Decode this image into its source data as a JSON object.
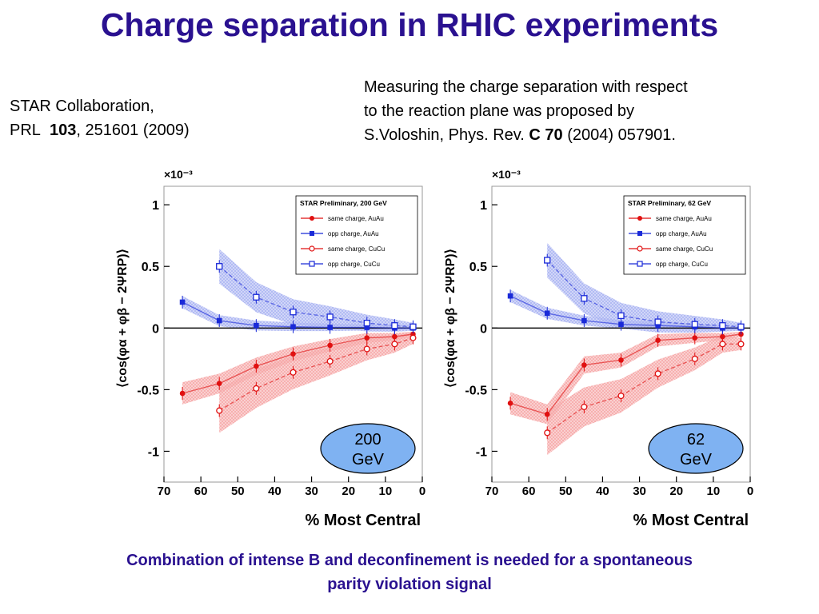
{
  "title": "Charge separation in RHIC experiments",
  "reference_left": {
    "line1": "STAR Collaboration,",
    "journal": "PRL",
    "volume": "103",
    "pages": ", 251601 (2009)"
  },
  "reference_right": {
    "line1": "Measuring the charge separation with respect",
    "line2": "to the reaction plane was proposed by",
    "line3_prefix": "S.Voloshin, Phys. Rev.",
    "line3_bold": "C 70",
    "line3_suffix": "(2004) 057901."
  },
  "caption": {
    "line1": "Combination of intense B and deconfinement is needed for a spontaneous",
    "line2": "parity violation signal"
  },
  "colors": {
    "title": "#2a1190",
    "same_charge": "#e01010",
    "opp_charge": "#1a2ad8",
    "same_band": "#f6a8a8",
    "opp_band": "#aab4f2",
    "badge": "#7fb2f2"
  },
  "chart_data": [
    {
      "type": "scatter",
      "xlabel": "% Most Central",
      "ylabel": "⟨cos(φα + φβ − 2ΨRP)⟩",
      "multiplier": "×10⁻³",
      "xlim": [
        70,
        0
      ],
      "ylim": [
        -1.25,
        1.15
      ],
      "yticks": [
        1,
        0.5,
        0,
        -0.5,
        -1
      ],
      "ytick_labels": [
        "1",
        "0.5",
        "0",
        "-0.5",
        "-1"
      ],
      "xticks": [
        70,
        60,
        50,
        40,
        30,
        20,
        10,
        0
      ],
      "legend_title": "STAR Preliminary,  200 GeV",
      "badge_line1": "200",
      "badge_line2": "GeV",
      "series": [
        {
          "name": "same charge, AuAu",
          "style": "filled-circle",
          "color": "#e01010",
          "x": [
            65,
            55,
            45,
            35,
            25,
            15,
            7.5,
            2.5
          ],
          "y": [
            -0.53,
            -0.45,
            -0.31,
            -0.21,
            -0.14,
            -0.08,
            -0.07,
            -0.05
          ]
        },
        {
          "name": "opp charge, AuAu",
          "style": "filled-square",
          "color": "#1a2ad8",
          "x": [
            65,
            55,
            45,
            35,
            25,
            15,
            7.5,
            2.5
          ],
          "y": [
            0.21,
            0.06,
            0.02,
            0.01,
            0.005,
            0.005,
            0.0,
            0.0
          ]
        },
        {
          "name": "same charge, CuCu",
          "style": "open-circle",
          "color": "#e01010",
          "x": [
            55,
            45,
            35,
            25,
            15,
            7.5,
            2.5
          ],
          "y": [
            -0.67,
            -0.49,
            -0.36,
            -0.27,
            -0.17,
            -0.13,
            -0.08
          ]
        },
        {
          "name": "opp charge, CuCu",
          "style": "open-square",
          "color": "#1a2ad8",
          "x": [
            55,
            45,
            35,
            25,
            15,
            7.5,
            2.5
          ],
          "y": [
            0.5,
            0.25,
            0.13,
            0.09,
            0.04,
            0.02,
            0.01
          ]
        }
      ]
    },
    {
      "type": "scatter",
      "xlabel": "% Most Central",
      "ylabel": "⟨cos(φα + φβ − 2ΨRP)⟩",
      "multiplier": "×10⁻³",
      "xlim": [
        70,
        0
      ],
      "ylim": [
        -1.25,
        1.15
      ],
      "yticks": [
        1,
        0.5,
        0,
        -0.5,
        -1
      ],
      "ytick_labels": [
        "1",
        "0.5",
        "0",
        "-0.5",
        "-1"
      ],
      "xticks": [
        70,
        60,
        50,
        40,
        30,
        20,
        10,
        0
      ],
      "legend_title": "STAR Preliminary,  62 GeV",
      "badge_line1": "62",
      "badge_line2": "GeV",
      "series": [
        {
          "name": "same charge, AuAu",
          "style": "filled-circle",
          "color": "#e01010",
          "x": [
            65,
            55,
            45,
            35,
            25,
            15,
            7.5,
            2.5
          ],
          "y": [
            -0.61,
            -0.7,
            -0.3,
            -0.26,
            -0.1,
            -0.08,
            -0.07,
            -0.05
          ]
        },
        {
          "name": "opp charge, AuAu",
          "style": "filled-square",
          "color": "#1a2ad8",
          "x": [
            65,
            55,
            45,
            35,
            25,
            15,
            7.5,
            2.5
          ],
          "y": [
            0.26,
            0.12,
            0.06,
            0.03,
            0.02,
            0.01,
            0.0,
            0.0
          ]
        },
        {
          "name": "same charge, CuCu",
          "style": "open-circle",
          "color": "#e01010",
          "x": [
            55,
            45,
            35,
            25,
            15,
            7.5,
            2.5
          ],
          "y": [
            -0.85,
            -0.64,
            -0.55,
            -0.37,
            -0.25,
            -0.13,
            -0.13
          ]
        },
        {
          "name": "opp charge, CuCu",
          "style": "open-square",
          "color": "#1a2ad8",
          "x": [
            55,
            45,
            35,
            25,
            15,
            7.5,
            2.5
          ],
          "y": [
            0.55,
            0.24,
            0.1,
            0.05,
            0.03,
            0.02,
            0.01
          ]
        }
      ]
    }
  ]
}
